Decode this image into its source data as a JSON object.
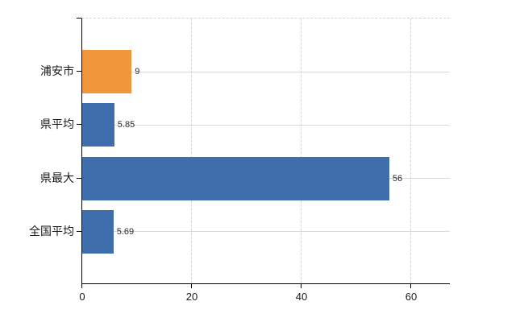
{
  "chart_data": {
    "type": "bar",
    "orientation": "horizontal",
    "title": "",
    "xlabel": "",
    "ylabel": "",
    "categories": [
      "浦安市",
      "県平均",
      "県最大",
      "全国平均"
    ],
    "values": [
      9,
      5.85,
      56,
      5.69
    ],
    "data_labels": [
      "9",
      "5.85",
      "56",
      "5.69"
    ],
    "bar_colors": [
      "#f0973c",
      "#3e6fac",
      "#3e6fac",
      "#3e6fac"
    ],
    "x_ticks": [
      {
        "value": 0,
        "label": "0"
      },
      {
        "value": 20,
        "label": "20"
      },
      {
        "value": 40,
        "label": "40"
      },
      {
        "value": 60,
        "label": "60"
      }
    ],
    "xlim": [
      0,
      67.2
    ],
    "grid": {
      "horizontal": "solid line at each category center",
      "vertical": "dashed line at each nonzero x tick",
      "top_border": "dashed"
    },
    "legend": "none",
    "accent_color": "#f0973c",
    "base_color": "#3e6fac"
  }
}
